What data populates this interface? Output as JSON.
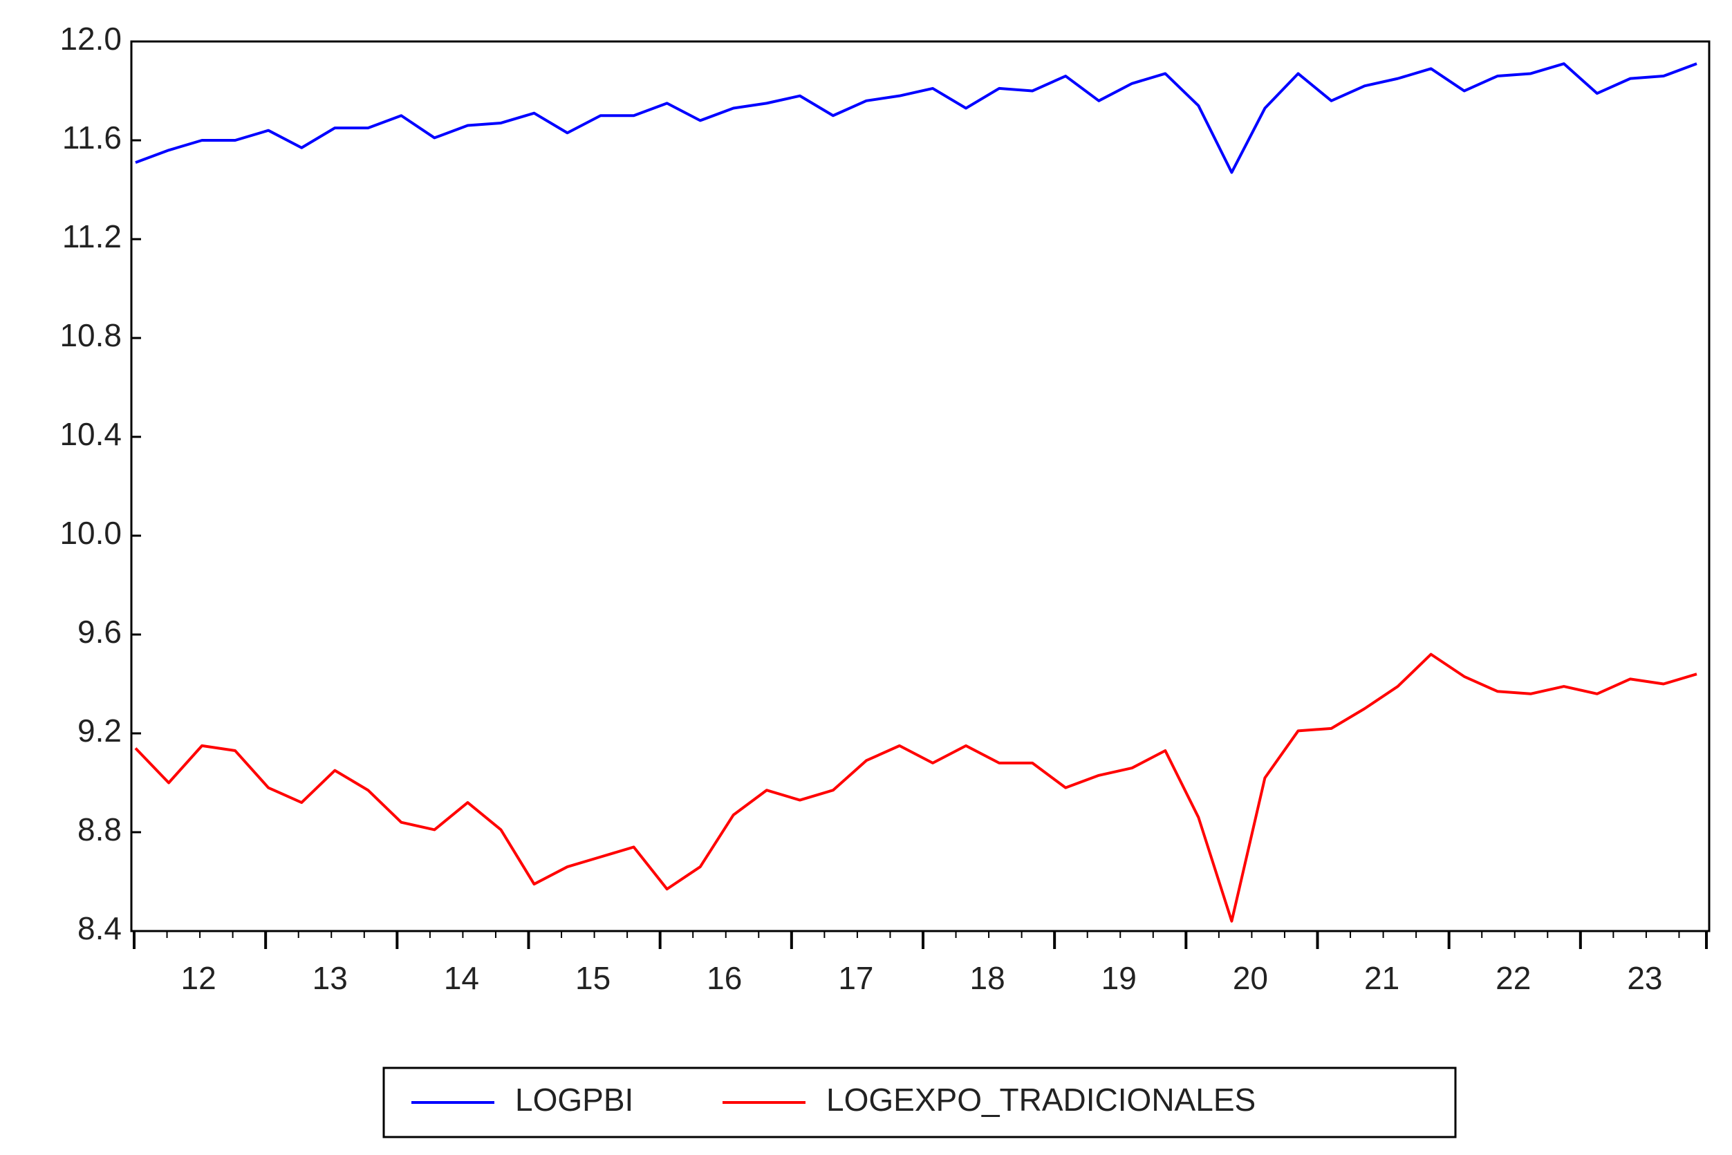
{
  "chart_data": {
    "type": "line",
    "categories": [
      "12",
      null,
      null,
      null,
      "13",
      null,
      null,
      null,
      "14",
      null,
      null,
      null,
      "15",
      null,
      null,
      null,
      "16",
      null,
      null,
      null,
      "17",
      null,
      null,
      null,
      "18",
      null,
      null,
      null,
      "19",
      null,
      null,
      null,
      "20",
      null,
      null,
      null,
      "21",
      null,
      null,
      null,
      "22",
      null,
      null,
      null,
      "23",
      null,
      null,
      null
    ],
    "series": [
      {
        "name": "LOGPBI",
        "color": "#0000ff",
        "values": [
          11.51,
          11.56,
          11.6,
          11.6,
          11.64,
          11.57,
          11.65,
          11.65,
          11.7,
          11.61,
          11.66,
          11.67,
          11.71,
          11.63,
          11.7,
          11.7,
          11.75,
          11.68,
          11.73,
          11.75,
          11.78,
          11.7,
          11.76,
          11.78,
          11.81,
          11.73,
          11.81,
          11.8,
          11.86,
          11.76,
          11.83,
          11.87,
          11.74,
          11.47,
          11.73,
          11.87,
          11.76,
          11.82,
          11.85,
          11.89,
          11.8,
          11.86,
          11.87,
          11.91,
          11.79,
          11.85,
          11.86,
          11.91
        ]
      },
      {
        "name": "LOGEXPO_TRADICIONALES",
        "color": "#ff0000",
        "values": [
          9.14,
          9.0,
          9.15,
          9.13,
          8.98,
          8.92,
          9.05,
          8.97,
          8.84,
          8.81,
          8.92,
          8.81,
          8.59,
          8.66,
          8.7,
          8.74,
          8.57,
          8.66,
          8.87,
          8.97,
          8.93,
          8.97,
          9.09,
          9.15,
          9.08,
          9.15,
          9.08,
          9.08,
          8.98,
          9.03,
          9.06,
          9.13,
          8.86,
          8.44,
          9.02,
          9.21,
          9.22,
          9.3,
          9.39,
          9.52,
          9.43,
          9.37,
          9.36,
          9.39,
          9.36,
          9.42,
          9.4,
          9.44
        ]
      }
    ],
    "ylim": [
      8.4,
      12.0
    ],
    "yticks": [
      {
        "value": 8.4,
        "label": "8.4"
      },
      {
        "value": 8.8,
        "label": "8.8"
      },
      {
        "value": 9.2,
        "label": "9.2"
      },
      {
        "value": 9.6,
        "label": "9.6"
      },
      {
        "value": 10.0,
        "label": "10.0"
      },
      {
        "value": 10.4,
        "label": "10.4"
      },
      {
        "value": 10.8,
        "label": "10.8"
      },
      {
        "value": 11.2,
        "label": "11.2"
      },
      {
        "value": 11.6,
        "label": "11.6"
      },
      {
        "value": 12.0,
        "label": "12.0"
      }
    ],
    "legend": "bottom"
  }
}
